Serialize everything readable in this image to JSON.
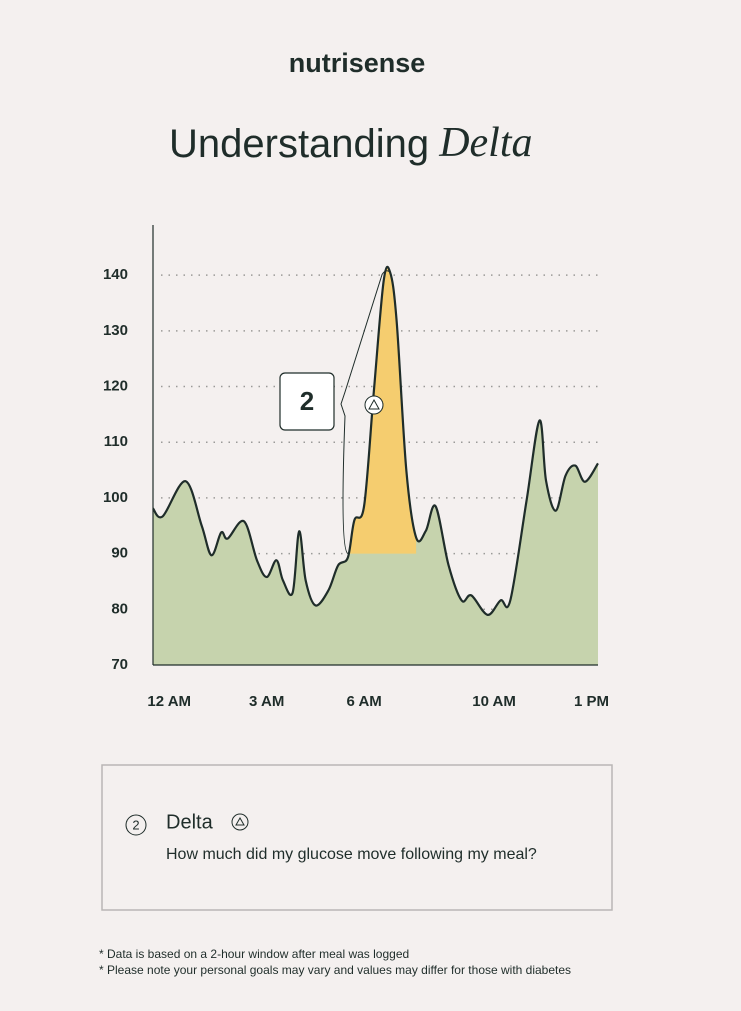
{
  "brand": "nutrisense",
  "title": {
    "main": "Understanding",
    "emphasis": "Delta"
  },
  "chart_data": {
    "type": "area",
    "x": [
      -0.5,
      -0.2,
      0.5,
      1.0,
      1.3,
      1.6,
      1.8,
      2.3,
      2.7,
      3.0,
      3.3,
      3.5,
      3.8,
      4.0,
      4.2,
      4.5,
      4.9,
      5.2,
      5.5,
      5.7,
      6.0,
      6.3,
      6.6,
      6.8,
      7.0,
      7.3,
      7.6,
      7.9,
      8.2,
      8.6,
      9.0,
      9.3,
      9.8,
      10.2,
      10.5,
      11.0,
      11.4,
      11.6,
      11.9,
      12.2,
      12.5,
      12.8,
      13.2
    ],
    "values": [
      98.1,
      96.7,
      103,
      95,
      89.7,
      93.8,
      92.7,
      95.8,
      88.8,
      85.8,
      88.8,
      85.2,
      83,
      94,
      85.2,
      80.7,
      83.4,
      87.9,
      89.3,
      96,
      98.6,
      119.2,
      138.9,
      140.5,
      131.8,
      104.9,
      92.9,
      94.1,
      98.5,
      87.9,
      81.6,
      82.5,
      79,
      81.6,
      81.6,
      99.5,
      113.9,
      103.1,
      97.7,
      104,
      105.8,
      102.9,
      106.2
    ],
    "color": "#c6d3ad",
    "line_color": "#1f2d2a",
    "xlim": [
      -0.5,
      13.2
    ],
    "xticks": [
      {
        "value": 0,
        "label": "12 AM"
      },
      {
        "value": 3,
        "label": "3 AM"
      },
      {
        "value": 6,
        "label": "6 AM"
      },
      {
        "value": 10,
        "label": "10 AM"
      },
      {
        "value": 13,
        "label": "1 PM"
      }
    ],
    "ylim": [
      70,
      149
    ],
    "yticks": [
      70,
      80,
      90,
      100,
      110,
      120,
      130,
      140
    ],
    "grid": true,
    "highlight": {
      "x_range": [
        5.5,
        7.6
      ],
      "baseline": 90,
      "color": "#f5cd6f"
    },
    "annotation": {
      "label": "2"
    }
  },
  "note": {
    "number": "2",
    "title": "Delta",
    "text": "How much did my glucose move following my meal?"
  },
  "footnotes": [
    "* Data is based on a 2-hour window after meal was logged",
    "* Please note your personal goals may vary and values may differ for those with diabetes"
  ]
}
